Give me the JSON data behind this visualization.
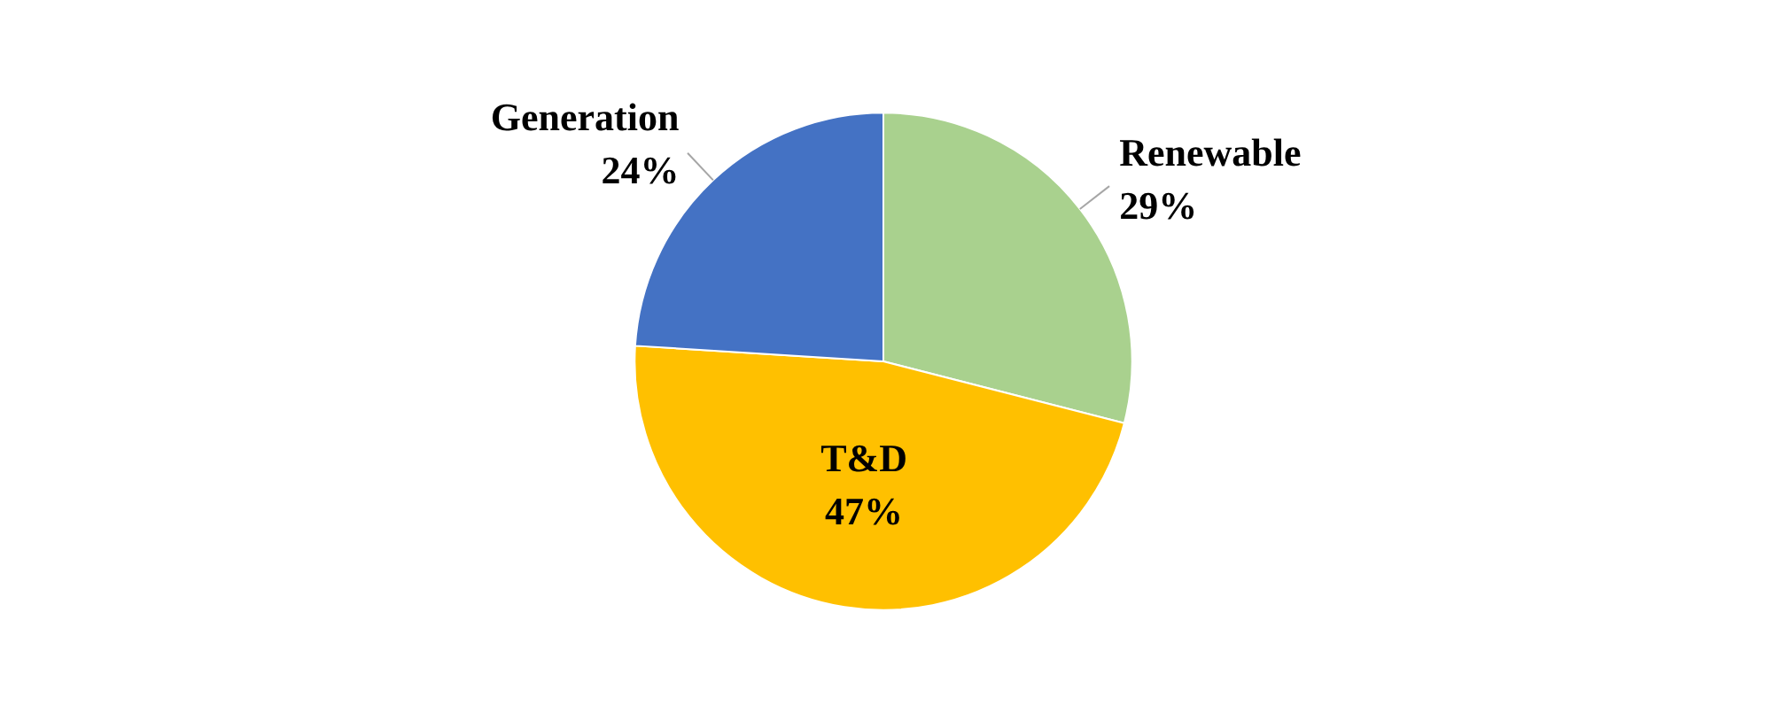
{
  "chart_data": {
    "type": "pie",
    "categories": [
      "Renewable",
      "T&D",
      "Generation"
    ],
    "values": [
      29,
      47,
      24
    ],
    "colors": [
      "#a9d18e",
      "#ffc000",
      "#4472c4"
    ],
    "value_labels": [
      "29%",
      "47%",
      "24%"
    ]
  }
}
